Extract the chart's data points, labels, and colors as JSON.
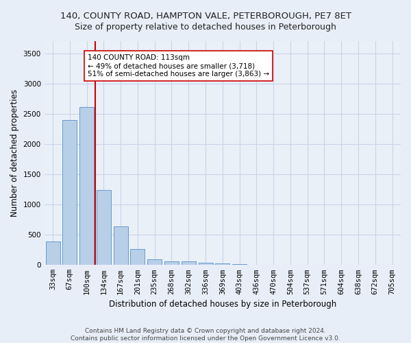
{
  "title1": "140, COUNTY ROAD, HAMPTON VALE, PETERBOROUGH, PE7 8ET",
  "title2": "Size of property relative to detached houses in Peterborough",
  "xlabel": "Distribution of detached houses by size in Peterborough",
  "ylabel": "Number of detached properties",
  "categories": [
    "33sqm",
    "67sqm",
    "100sqm",
    "134sqm",
    "167sqm",
    "201sqm",
    "235sqm",
    "268sqm",
    "302sqm",
    "336sqm",
    "369sqm",
    "403sqm",
    "436sqm",
    "470sqm",
    "504sqm",
    "537sqm",
    "571sqm",
    "604sqm",
    "638sqm",
    "672sqm",
    "705sqm"
  ],
  "values": [
    390,
    2400,
    2610,
    1240,
    640,
    260,
    95,
    58,
    55,
    40,
    25,
    20,
    0,
    0,
    0,
    0,
    0,
    0,
    0,
    0,
    0
  ],
  "bar_color": "#b8cfe8",
  "bar_edgecolor": "#6699cc",
  "vline_x": 2.5,
  "vline_color": "#cc0000",
  "annotation_text": "140 COUNTY ROAD: 113sqm\n← 49% of detached houses are smaller (3,718)\n51% of semi-detached houses are larger (3,863) →",
  "annotation_box_edgecolor": "#cc0000",
  "annotation_box_facecolor": "#ffffff",
  "ylim": [
    0,
    3700
  ],
  "yticks": [
    0,
    500,
    1000,
    1500,
    2000,
    2500,
    3000,
    3500
  ],
  "grid_color": "#c8d4e8",
  "background_color": "#e8eef8",
  "plot_bg_color": "#eaf0f8",
  "footer": "Contains HM Land Registry data © Crown copyright and database right 2024.\nContains public sector information licensed under the Open Government Licence v3.0.",
  "title1_fontsize": 9.5,
  "title2_fontsize": 9,
  "axis_label_fontsize": 8.5,
  "tick_fontsize": 7.5,
  "footer_fontsize": 6.5,
  "annot_fontsize": 7.5
}
